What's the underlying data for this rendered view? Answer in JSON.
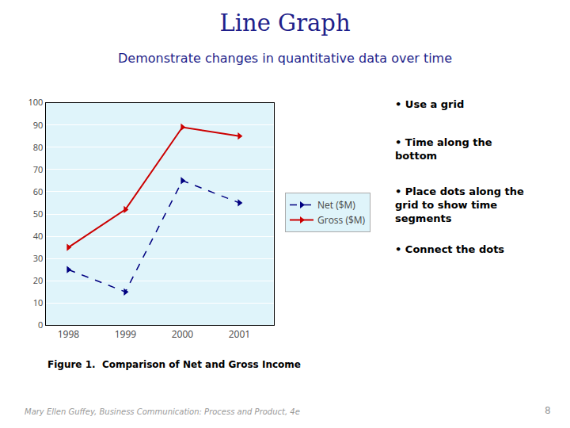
{
  "chart_data": {
    "type": "line",
    "title": "Line Graph",
    "subtitle": "Demonstrate changes in quantitative data over time",
    "title_color": "#1F1F8B",
    "background": "#DFF4FA",
    "x": [
      1998,
      1999,
      2000,
      2001
    ],
    "series": [
      {
        "name": "Net ($M)",
        "color": "#000080",
        "values": [
          25,
          15,
          65,
          55
        ],
        "marker": "triangle-right",
        "line_style": "dash"
      },
      {
        "name": "Gross ($M)",
        "color": "#CC0000",
        "values": [
          35,
          52,
          89,
          85
        ],
        "marker": "triangle-right",
        "line_style": "solid"
      }
    ],
    "xlim": [
      1997.6,
      2001.6
    ],
    "xticks": [
      1998,
      1999,
      2000,
      2001
    ],
    "ylim": [
      0,
      100
    ],
    "yticks": [
      0,
      10,
      20,
      30,
      40,
      50,
      60,
      70,
      80,
      90,
      100
    ],
    "grid": true,
    "legend": "right",
    "caption": "Figure 1.  Comparison of Net and Gross Income",
    "notes": [
      "• Use a grid",
      "• Time along the\nbottom",
      "• Place dots along the\ngrid to show time\nsegments",
      "• Connect the dots"
    ],
    "footer": [
      "Mary Ellen Guffey, Business Communication: Process and Product, 4e",
      "8"
    ]
  }
}
